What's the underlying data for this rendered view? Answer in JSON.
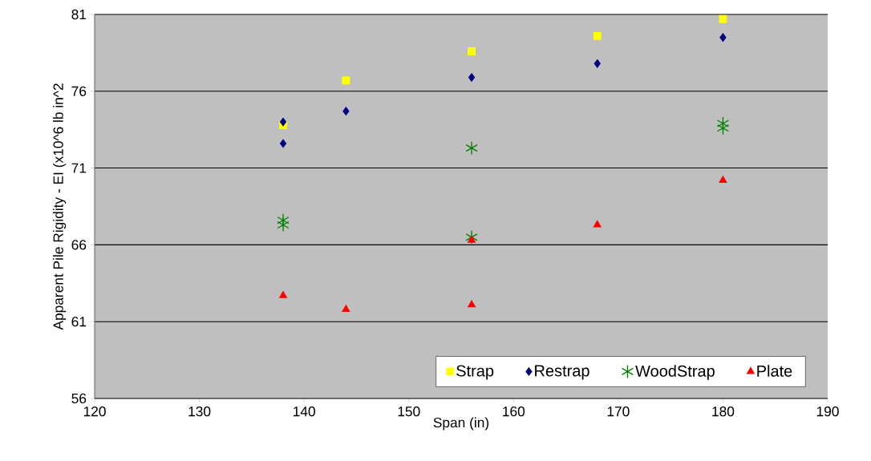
{
  "chart_data": {
    "type": "scatter",
    "xlabel": "Span (in)",
    "ylabel": "Apparent Pile Rigidity - EI (x10^6 lb in^2",
    "xlim": [
      120,
      190
    ],
    "xticks": [
      120,
      130,
      140,
      150,
      160,
      170,
      180,
      190
    ],
    "ylim": [
      56,
      81
    ],
    "yticks": [
      56,
      61,
      66,
      71,
      76,
      81
    ],
    "grid": "y",
    "legend": "bottom right",
    "series": [
      {
        "name": "Strap",
        "color": "#ffff00",
        "marker": "square",
        "x": [
          138,
          144,
          156,
          168,
          180
        ],
        "values": [
          73.8,
          76.7,
          78.6,
          79.6,
          80.7
        ]
      },
      {
        "name": "Restrap",
        "color": "#000080",
        "marker": "diamond",
        "x": [
          138,
          138,
          144,
          156,
          168,
          180
        ],
        "values": [
          74.0,
          72.6,
          74.7,
          76.9,
          77.8,
          79.5
        ]
      },
      {
        "name": "WoodStrap",
        "color": "#008000",
        "marker": "cross",
        "x": [
          138,
          138,
          156,
          156,
          180,
          180
        ],
        "values": [
          67.6,
          67.3,
          72.3,
          66.5,
          73.9,
          73.6
        ]
      },
      {
        "name": "Plate",
        "color": "#ff0000",
        "marker": "triangle",
        "x": [
          138,
          144,
          156,
          156,
          168,
          180
        ],
        "values": [
          62.7,
          61.8,
          62.1,
          66.3,
          67.3,
          70.2
        ]
      }
    ]
  }
}
